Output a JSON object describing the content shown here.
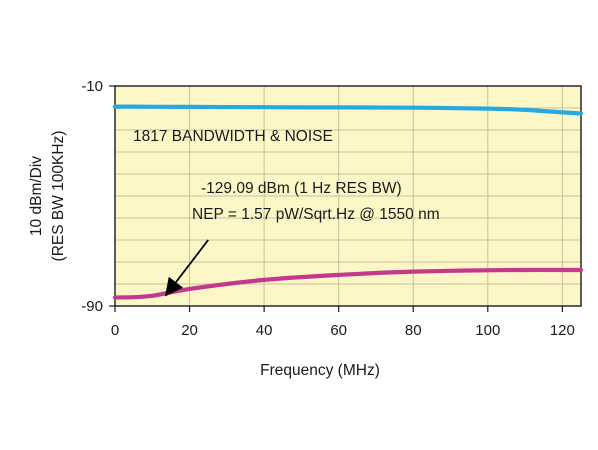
{
  "chart_data": {
    "type": "line",
    "title": "",
    "xlabel": "Frequency (MHz)",
    "ylabel_lines": [
      "10 dBm/Div",
      "(RES BW 100KHz)"
    ],
    "xlim": [
      0,
      125
    ],
    "ylim": [
      -90,
      -10
    ],
    "x_ticks": [
      0,
      20,
      40,
      60,
      80,
      100,
      120
    ],
    "y_tick_labels": [
      {
        "value": -10,
        "label": "-10"
      },
      {
        "value": -90,
        "label": "-90"
      }
    ],
    "grid": true,
    "y_gridlines": [
      -10,
      -18,
      -26,
      -34,
      -42,
      -50,
      -58,
      -66,
      -74,
      -82,
      -90
    ],
    "plot_background": "#fdf7c8",
    "grid_color": "#c8c098",
    "series": [
      {
        "color": "#29a8df",
        "x": [
          0,
          20,
          40,
          60,
          80,
          100,
          110,
          120,
          125
        ],
        "y": [
          -17.5,
          -17.6,
          -17.7,
          -17.8,
          -17.9,
          -18.2,
          -18.7,
          -19.6,
          -20.0
        ]
      },
      {
        "color": "#c4388e",
        "x": [
          0,
          5,
          10,
          15,
          20,
          30,
          40,
          50,
          60,
          70,
          80,
          90,
          100,
          110,
          120,
          125
        ],
        "y": [
          -86.9,
          -86.8,
          -86.3,
          -85.0,
          -83.8,
          -82.0,
          -80.5,
          -79.5,
          -78.7,
          -78.0,
          -77.5,
          -77.2,
          -77.0,
          -76.9,
          -76.9,
          -76.9
        ]
      }
    ],
    "annotations": {
      "label": "1817 BANDWIDTH & NOISE",
      "level": "-129.09 dBm (1 Hz RES BW)",
      "nep": "NEP = 1.57 pW/Sqrt.Hz @ 1550 nm"
    },
    "arrow": {
      "from": [
        25,
        -66
      ],
      "to": [
        14,
        -85.5
      ]
    }
  }
}
